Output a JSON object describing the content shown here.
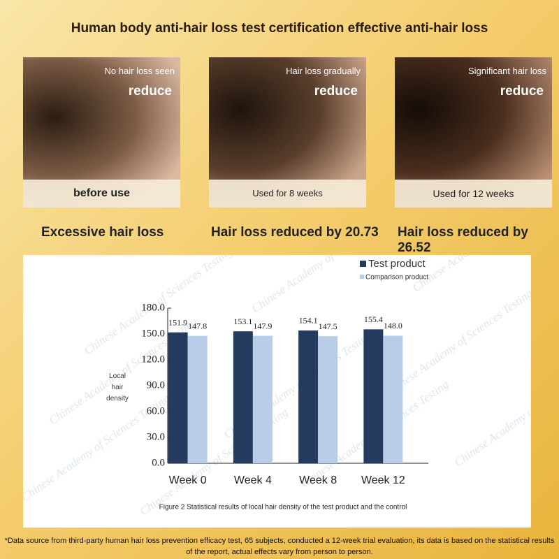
{
  "header": {
    "title": "Human body anti-hair loss test certification effective anti-hair loss"
  },
  "panels": [
    {
      "note": "No hair loss seen",
      "tag": "reduce",
      "label": "before use",
      "caption": "Excessive hair loss"
    },
    {
      "note": "Hair loss gradually",
      "tag": "reduce",
      "label": "Used for 8 weeks",
      "caption": "Hair loss reduced by 20.73"
    },
    {
      "note": "Significant hair loss",
      "tag": "reduce",
      "label": "Used for 12 weeks",
      "caption": "Hair loss reduced by 26.52"
    }
  ],
  "chart_data": {
    "type": "bar",
    "caption": "Figure 2 Statistical results of local hair density of the test product and the control",
    "y_label": "Local hair density",
    "watermark": "Chinese Academy of Sciences Testing",
    "categories": [
      "Week 0",
      "Week 4",
      "Week 8",
      "Week 12"
    ],
    "series": [
      {
        "name": "Test product",
        "color": "#243a5e",
        "values": [
          151.9,
          153.1,
          154.1,
          155.4
        ],
        "value_labels": [
          "151.9",
          "153.1",
          "154.1",
          "155.4"
        ]
      },
      {
        "name": "Comparison product",
        "color": "#b9cce8",
        "values": [
          147.8,
          147.9,
          147.5,
          148.0
        ],
        "value_labels": [
          "147.8",
          "147.9",
          "147.5",
          "148.0"
        ]
      }
    ],
    "ylim": [
      0,
      180
    ],
    "yticks": [
      {
        "value": 0,
        "label": "0.0"
      },
      {
        "value": 30,
        "label": "30.0"
      },
      {
        "value": 60,
        "label": "60.0"
      },
      {
        "value": 90,
        "label": "90.0"
      },
      {
        "value": 120,
        "label": "120.0"
      },
      {
        "value": 150,
        "label": "150.0"
      },
      {
        "value": 180,
        "label": "180.0"
      }
    ],
    "grid": false
  },
  "footnote": "*Data source from third-party human hair loss prevention efficacy test, 65 subjects, conducted a 12-week trial evaluation, its data is based on the statistical results of the report, actual effects vary from person to person."
}
